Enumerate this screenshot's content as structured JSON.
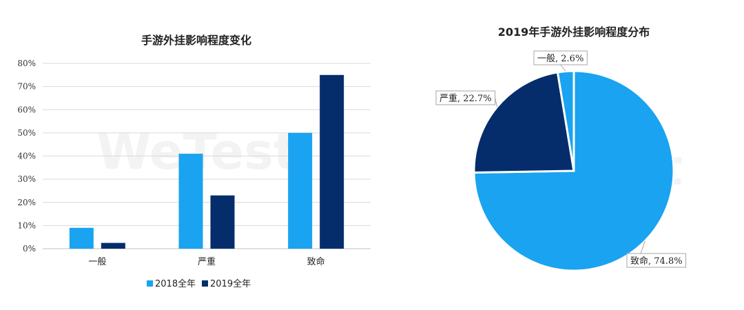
{
  "watermark": "WeTest",
  "chart_data": [
    {
      "type": "bar",
      "title": "手游外挂影响程度变化",
      "categories": [
        "一般",
        "严重",
        "致命"
      ],
      "ylim": [
        0,
        80
      ],
      "yticks": [
        "0%",
        "10%",
        "20%",
        "30%",
        "40%",
        "50%",
        "60%",
        "70%",
        "80%"
      ],
      "series": [
        {
          "name": "2018全年",
          "color": "#1aa3f0",
          "values": [
            9,
            41,
            50
          ]
        },
        {
          "name": "2019全年",
          "color": "#052d6c",
          "values": [
            2.5,
            23,
            75
          ]
        }
      ],
      "grid": true,
      "legend": "bottom"
    },
    {
      "type": "pie",
      "title": "2019年手游外挂影响程度分布",
      "slices": [
        {
          "label": "致命, 74.8%",
          "name": "致命",
          "value": 74.8,
          "color": "#1aa3f0"
        },
        {
          "label": "严重, 22.7%",
          "name": "严重",
          "value": 22.7,
          "color": "#052d6c"
        },
        {
          "label": "一般, 2.6%",
          "name": "一般",
          "value": 2.6,
          "color": "#1aa3f0"
        }
      ]
    }
  ]
}
